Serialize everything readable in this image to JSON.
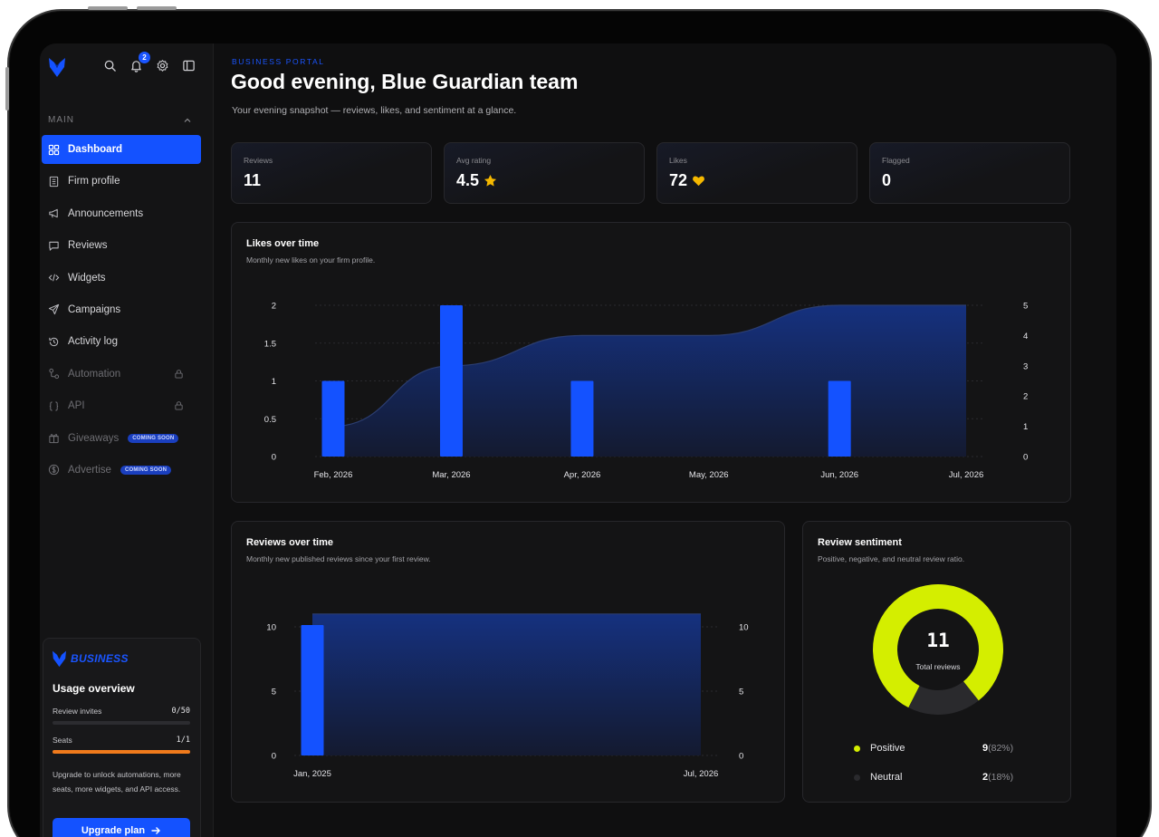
{
  "sidebar": {
    "notifications_count": "2",
    "section_label": "MAIN",
    "items": [
      {
        "label": "Dashboard",
        "icon": "grid-icon"
      },
      {
        "label": "Firm profile",
        "icon": "building-icon"
      },
      {
        "label": "Announcements",
        "icon": "megaphone-icon"
      },
      {
        "label": "Reviews",
        "icon": "message-icon"
      },
      {
        "label": "Widgets",
        "icon": "code-icon"
      },
      {
        "label": "Campaigns",
        "icon": "send-icon"
      },
      {
        "label": "Activity log",
        "icon": "history-icon"
      },
      {
        "label": "Automation",
        "icon": "workflow-icon"
      },
      {
        "label": "API",
        "icon": "braces-icon"
      },
      {
        "label": "Giveaways",
        "icon": "gift-icon",
        "badge": "COMING SOON"
      },
      {
        "label": "Advertise",
        "icon": "dollar-icon",
        "badge": "COMING SOON"
      }
    ],
    "usage": {
      "brand": "BUSINESS",
      "title": "Usage overview",
      "review_invites_label": "Review invites",
      "review_invites_value": "0/50",
      "review_invites_fraction": 0,
      "seats_label": "Seats",
      "seats_value": "1/1",
      "seats_fraction": 1,
      "upgrade_text": "Upgrade to unlock automations, more seats, more widgets, and API access.",
      "upgrade_button": "Upgrade plan"
    }
  },
  "header": {
    "eyebrow": "BUSINESS PORTAL",
    "title": "Good evening, Blue Guardian team",
    "subtitle": "Your evening snapshot — reviews, likes, and sentiment at a glance."
  },
  "stats": [
    {
      "label": "Reviews",
      "value": "11"
    },
    {
      "label": "Avg rating",
      "value": "4.5",
      "icon": "star-icon"
    },
    {
      "label": "Likes",
      "value": "72",
      "icon": "heart-icon"
    },
    {
      "label": "Flagged",
      "value": "0"
    }
  ],
  "colors": {
    "accent": "#1452ff",
    "area": "#142a73",
    "positive": "#d4ee00",
    "neutral": "#2a2a2d",
    "orange": "#f07a1c",
    "gold": "#f5b800"
  },
  "likes_chart": {
    "title": "Likes over time",
    "subtitle": "Monthly new likes on your firm profile.",
    "chart_data": {
      "type": "bar",
      "categories": [
        "Feb, 2026",
        "Mar, 2026",
        "Apr, 2026",
        "May, 2026",
        "Jun, 2026",
        "Jul, 2026"
      ],
      "x": [
        "2026-02-01",
        "2026-03-01",
        "2026-04-01",
        "2026-05-01",
        "2026-06-01",
        "2026-07-01"
      ],
      "series": [
        {
          "type": "bar",
          "axis": "left",
          "points": [
            [
              "2026-02-01",
              1
            ],
            [
              "2026-03-01",
              2
            ],
            [
              "2026-04-01",
              1
            ],
            [
              "2026-06-01",
              1
            ]
          ]
        },
        {
          "type": "area",
          "axis": "right",
          "points": [
            [
              "2026-02-01",
              1
            ],
            [
              "2026-03-01",
              3
            ],
            [
              "2026-04-01",
              4
            ],
            [
              "2026-05-01",
              4
            ],
            [
              "2026-06-01",
              5
            ],
            [
              "2026-07-01",
              5
            ]
          ]
        }
      ],
      "ylim": [
        0,
        2
      ],
      "y_ticks": [
        "0",
        "0.5",
        "1",
        "1.5",
        "2"
      ],
      "y2lim": [
        0,
        5
      ],
      "y2_ticks": [
        "0",
        "1",
        "2",
        "3",
        "4",
        "5"
      ],
      "grid": true
    }
  },
  "reviews_chart": {
    "title": "Reviews over time",
    "subtitle": "Monthly new published reviews since your first review.",
    "chart_data": {
      "type": "bar",
      "categories": [
        "Jan, 2025",
        "Jul, 2026"
      ],
      "x": [
        "2025-01-01",
        "2026-07-01"
      ],
      "series": [
        {
          "type": "bar",
          "axis": "left",
          "points": [
            [
              "2025-01-01",
              11
            ]
          ]
        },
        {
          "type": "area",
          "axis": "right",
          "points": [
            [
              "2025-01-01",
              11
            ],
            [
              "2026-07-01",
              11
            ]
          ]
        }
      ],
      "ylim": [
        0,
        10
      ],
      "y_ticks": [
        "0",
        "5",
        "10"
      ],
      "y2_ticks": [
        "0",
        "5",
        "10"
      ],
      "grid": true
    }
  },
  "sentiment": {
    "title": "Review sentiment",
    "subtitle": "Positive, negative, and neutral review ratio.",
    "total": "11",
    "total_label": "Total reviews",
    "chart_data": {
      "type": "pie",
      "categories": [
        "Positive",
        "Neutral"
      ],
      "values": [
        9,
        2
      ]
    },
    "legend": [
      {
        "label": "Positive",
        "count": "9",
        "pct": "(82%)"
      },
      {
        "label": "Neutral",
        "count": "2",
        "pct": "(18%)"
      }
    ]
  }
}
